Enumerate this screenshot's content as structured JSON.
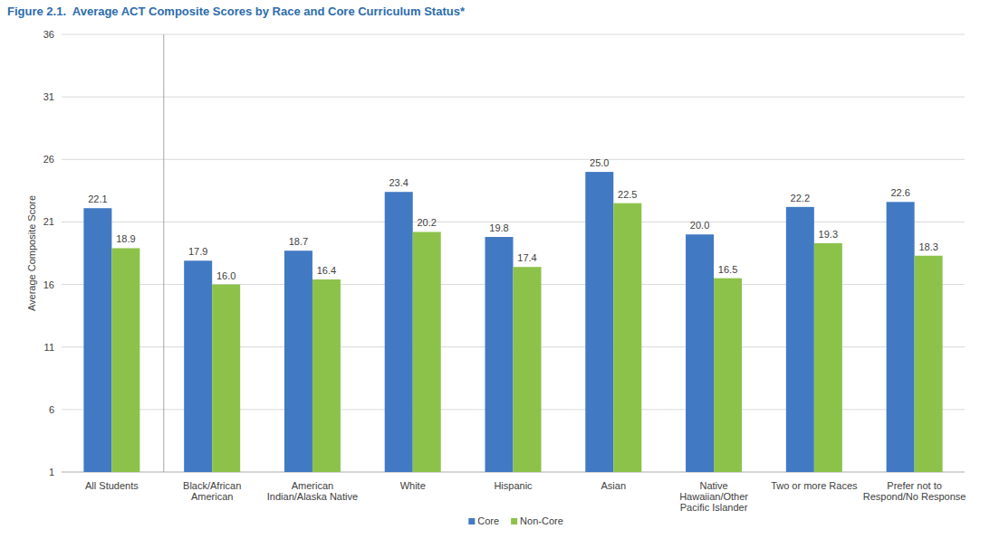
{
  "chart_data": {
    "type": "bar",
    "title": "Figure 2.1.  Average ACT Composite Scores by Race and Core Curriculum Status*",
    "y_label": "Average Composite Score",
    "categories": [
      "All Students",
      "Black/African American",
      "American Indian/Alaska Native",
      "White",
      "Hispanic",
      "Asian",
      "Native Hawaiian/Other Pacific Islander",
      "Two or more Races",
      "Prefer not to Respond/No Response"
    ],
    "series": [
      {
        "name": "Core",
        "color": "#4179c3",
        "values": [
          22.1,
          17.9,
          18.7,
          23.4,
          19.8,
          25.0,
          20.0,
          22.2,
          22.6
        ],
        "value_labels": [
          "22.1",
          "17.9",
          "18.7",
          "23.4",
          "19.8",
          "25.0",
          "20.0",
          "22.2",
          "22.6"
        ]
      },
      {
        "name": "Non-Core",
        "color": "#8cc24a",
        "values": [
          18.9,
          16.0,
          16.4,
          20.2,
          17.4,
          22.5,
          16.5,
          19.3,
          18.3
        ],
        "value_labels": [
          "18.9",
          "16.0",
          "16.4",
          "20.2",
          "17.4",
          "22.5",
          "16.5",
          "19.3",
          "18.3"
        ]
      }
    ],
    "ylim": [
      1,
      36
    ],
    "yticks": [
      1,
      6,
      11,
      16,
      21,
      26,
      31,
      36
    ],
    "grid": true,
    "data_labels": true,
    "legend": "bottom"
  }
}
